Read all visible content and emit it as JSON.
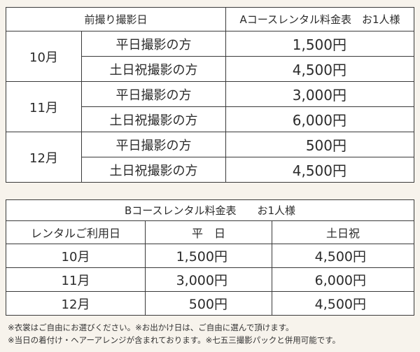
{
  "table_a": {
    "header_left": "前撮り撮影日",
    "header_right": "Aコースレンタル料金表　お1人様",
    "rows": [
      {
        "month": "10月",
        "weekday_label": "平日撮影の方",
        "weekday_price": "1,500円",
        "weekend_label": "土日祝撮影の方",
        "weekend_price": "4,500円"
      },
      {
        "month": "11月",
        "weekday_label": "平日撮影の方",
        "weekday_price": "3,000円",
        "weekend_label": "土日祝撮影の方",
        "weekend_price": "6,000円"
      },
      {
        "month": "12月",
        "weekday_label": "平日撮影の方",
        "weekday_price": "500円",
        "weekend_label": "土日祝撮影の方",
        "weekend_price": "4,500円"
      }
    ]
  },
  "table_b": {
    "title": "Bコースレンタル料金表　　お1人様",
    "columns": [
      "レンタルご利用日",
      "平　日",
      "土日祝"
    ],
    "rows": [
      {
        "month": "10月",
        "weekday": "1,500円",
        "weekend": "4,500円"
      },
      {
        "month": "11月",
        "weekday": "3,000円",
        "weekend": "6,000円"
      },
      {
        "month": "12月",
        "weekday": "500円",
        "weekend": "4,500円"
      }
    ]
  },
  "notes": [
    "※衣裳はご自由にお選びください。※お出かけ日は、ご自由に選んで頂けます。",
    "※当日の着付け・ヘアーアレンジが含まれております。※七五三撮影パックと併用可能です。"
  ]
}
